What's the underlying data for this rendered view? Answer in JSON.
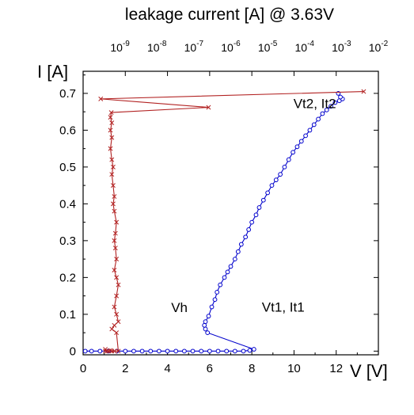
{
  "chart_data": {
    "type": "line",
    "title": "leakage current [A] @ 3.63V",
    "xlabel": "V [V]",
    "ylabel": "I [A]",
    "xlim": [
      0,
      14
    ],
    "ylim": [
      -0.01,
      0.76
    ],
    "x_ticks": [
      "0",
      "2",
      "4",
      "6",
      "8",
      "10",
      "12"
    ],
    "y_ticks": [
      "0",
      "0.1",
      "0.2",
      "0.3",
      "0.4",
      "0.5",
      "0.6",
      "0.7"
    ],
    "x2_scale": "log",
    "x2lim": [
      1e-10,
      0.01
    ],
    "x2_ticks": [
      {
        "base": "10",
        "exp": "-9"
      },
      {
        "base": "10",
        "exp": "-8"
      },
      {
        "base": "10",
        "exp": "-7"
      },
      {
        "base": "10",
        "exp": "-6"
      },
      {
        "base": "10",
        "exp": "-5"
      },
      {
        "base": "10",
        "exp": "-4"
      },
      {
        "base": "10",
        "exp": "-3"
      },
      {
        "base": "10",
        "exp": "-2"
      }
    ],
    "grid": false,
    "annotations": [
      {
        "text": "Vt2, It2",
        "x": 11.7,
        "y": 0.66
      },
      {
        "text": "Vh",
        "x": 5.6,
        "y": 0.07
      },
      {
        "text": "Vt1, It1",
        "x": 8.4,
        "y": 0.06
      }
    ],
    "series": [
      {
        "color": "#0000cc",
        "marker": "circle",
        "axis": "bottom",
        "x": [
          0.1,
          0.4,
          0.8,
          1.2,
          1.6,
          2.0,
          2.4,
          2.8,
          3.2,
          3.6,
          4.0,
          4.4,
          4.8,
          5.2,
          5.6,
          6.0,
          6.4,
          6.8,
          7.2,
          7.6,
          7.9,
          8.1,
          5.9,
          5.8,
          5.75,
          5.8,
          5.95,
          6.1,
          6.25,
          6.35,
          6.5,
          6.7,
          6.85,
          7.0,
          7.2,
          7.35,
          7.5,
          7.7,
          7.85,
          8.0,
          8.2,
          8.35,
          8.55,
          8.75,
          8.95,
          9.15,
          9.35,
          9.55,
          9.75,
          9.95,
          10.15,
          10.35,
          10.55,
          10.75,
          10.95,
          11.15,
          11.35,
          11.55,
          11.75,
          11.95,
          12.15,
          12.3,
          12.2,
          12.1
        ],
        "y": [
          0.0,
          0.0,
          0.0,
          0.0,
          0.0,
          0.0,
          0.0,
          0.0,
          0.0,
          0.0,
          0.0,
          0.0,
          0.0,
          0.0,
          0.0,
          0.0,
          0.0,
          0.0,
          0.0,
          0.0,
          0.002,
          0.005,
          0.05,
          0.06,
          0.07,
          0.08,
          0.095,
          0.12,
          0.14,
          0.16,
          0.18,
          0.2,
          0.215,
          0.23,
          0.25,
          0.27,
          0.29,
          0.31,
          0.33,
          0.35,
          0.37,
          0.39,
          0.41,
          0.43,
          0.45,
          0.465,
          0.48,
          0.5,
          0.52,
          0.54,
          0.555,
          0.57,
          0.585,
          0.6,
          0.615,
          0.63,
          0.645,
          0.655,
          0.665,
          0.675,
          0.68,
          0.685,
          0.69,
          0.7
        ]
      },
      {
        "color": "#b22222",
        "marker": "x",
        "axis": "top",
        "x": [
          4e-10,
          4e-10,
          4.5e-10,
          5e-10,
          5.5e-10,
          6e-10,
          7e-10,
          9e-10,
          8e-10,
          6e-10,
          7e-10,
          9e-10,
          8e-10,
          7e-10,
          8e-10,
          9e-10,
          8e-10,
          7e-10,
          8e-10,
          7.5e-10,
          7e-10,
          7.5e-10,
          8e-10,
          7e-10,
          6.5e-10,
          7e-10,
          6.5e-10,
          6e-10,
          6.5e-10,
          6e-10,
          5.5e-10,
          6e-10,
          5.5e-10,
          6e-10,
          5.5e-10,
          5.8e-10,
          2.5e-07,
          3e-10,
          0.004
        ],
        "y": [
          0.0,
          0.005,
          0.0,
          0.0,
          0.002,
          0.0,
          0.0,
          0.0,
          0.05,
          0.06,
          0.07,
          0.08,
          0.1,
          0.12,
          0.15,
          0.18,
          0.2,
          0.22,
          0.25,
          0.28,
          0.3,
          0.32,
          0.35,
          0.38,
          0.4,
          0.42,
          0.45,
          0.48,
          0.5,
          0.52,
          0.55,
          0.58,
          0.6,
          0.62,
          0.635,
          0.648,
          0.662,
          0.685,
          0.705
        ]
      }
    ]
  }
}
